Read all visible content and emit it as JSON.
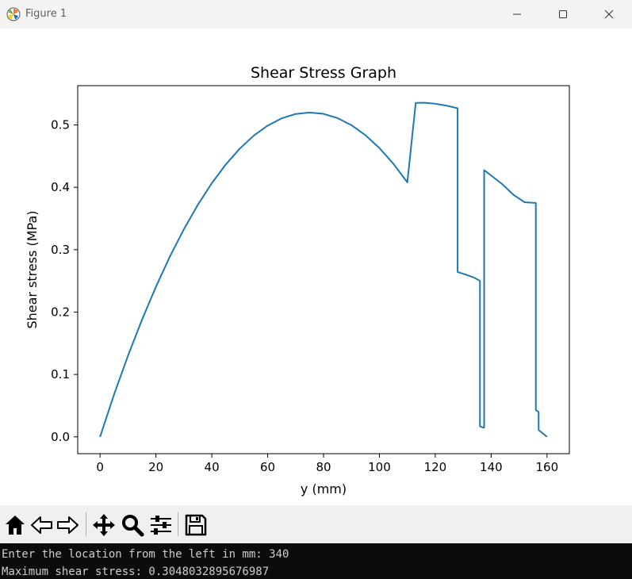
{
  "window": {
    "title": "Figure 1",
    "controls": {
      "minimize": "minimize-icon",
      "maximize": "maximize-icon",
      "close": "close-icon"
    }
  },
  "toolbar": {
    "tools": [
      "home-icon",
      "back-icon",
      "forward-icon",
      "pan-icon",
      "zoom-icon",
      "configure-subplots-icon",
      "save-icon"
    ]
  },
  "chart_data": {
    "type": "line",
    "title": "Shear Stress Graph",
    "xlabel": "y (mm)",
    "ylabel": "Shear stress (MPa)",
    "xlim": [
      -8,
      168
    ],
    "ylim": [
      -0.027,
      0.563
    ],
    "xticks": [
      0,
      20,
      40,
      60,
      80,
      100,
      120,
      140,
      160
    ],
    "yticks": [
      0.0,
      0.1,
      0.2,
      0.3,
      0.4,
      0.5
    ],
    "xtick_labels": [
      "0",
      "20",
      "40",
      "60",
      "80",
      "100",
      "120",
      "140",
      "160"
    ],
    "ytick_labels": [
      "0.0",
      "0.1",
      "0.2",
      "0.3",
      "0.4",
      "0.5"
    ],
    "line_color": "#1f77b4",
    "grid": false,
    "series": [
      {
        "x": [
          0,
          5,
          10,
          15,
          20,
          25,
          30,
          35,
          40,
          45,
          50,
          55,
          60,
          65,
          70,
          75,
          80,
          85,
          90,
          95,
          100,
          105,
          110,
          113,
          116,
          120,
          124,
          128,
          128,
          131,
          134,
          136,
          136,
          137,
          137,
          137.5,
          137.5,
          140,
          144,
          148,
          152,
          156,
          156,
          157,
          157,
          160
        ],
        "y": [
          0.0,
          0.0678,
          0.13,
          0.1876,
          0.2406,
          0.289,
          0.3328,
          0.372,
          0.4066,
          0.4366,
          0.462,
          0.4828,
          0.499,
          0.5106,
          0.5176,
          0.52,
          0.5178,
          0.511,
          0.4996,
          0.4836,
          0.463,
          0.4378,
          0.408,
          0.5354,
          0.5356,
          0.534,
          0.531,
          0.5268,
          0.2643,
          0.26,
          0.255,
          0.25,
          0.017,
          0.015,
          0.015,
          0.015,
          0.4275,
          0.419,
          0.405,
          0.388,
          0.376,
          0.375,
          0.043,
          0.04,
          0.011,
          0.0
        ]
      }
    ]
  },
  "console": {
    "lines": [
      "Enter the location from the left in mm: 340",
      "Maximum shear stress: 0.3048032895676987"
    ]
  }
}
